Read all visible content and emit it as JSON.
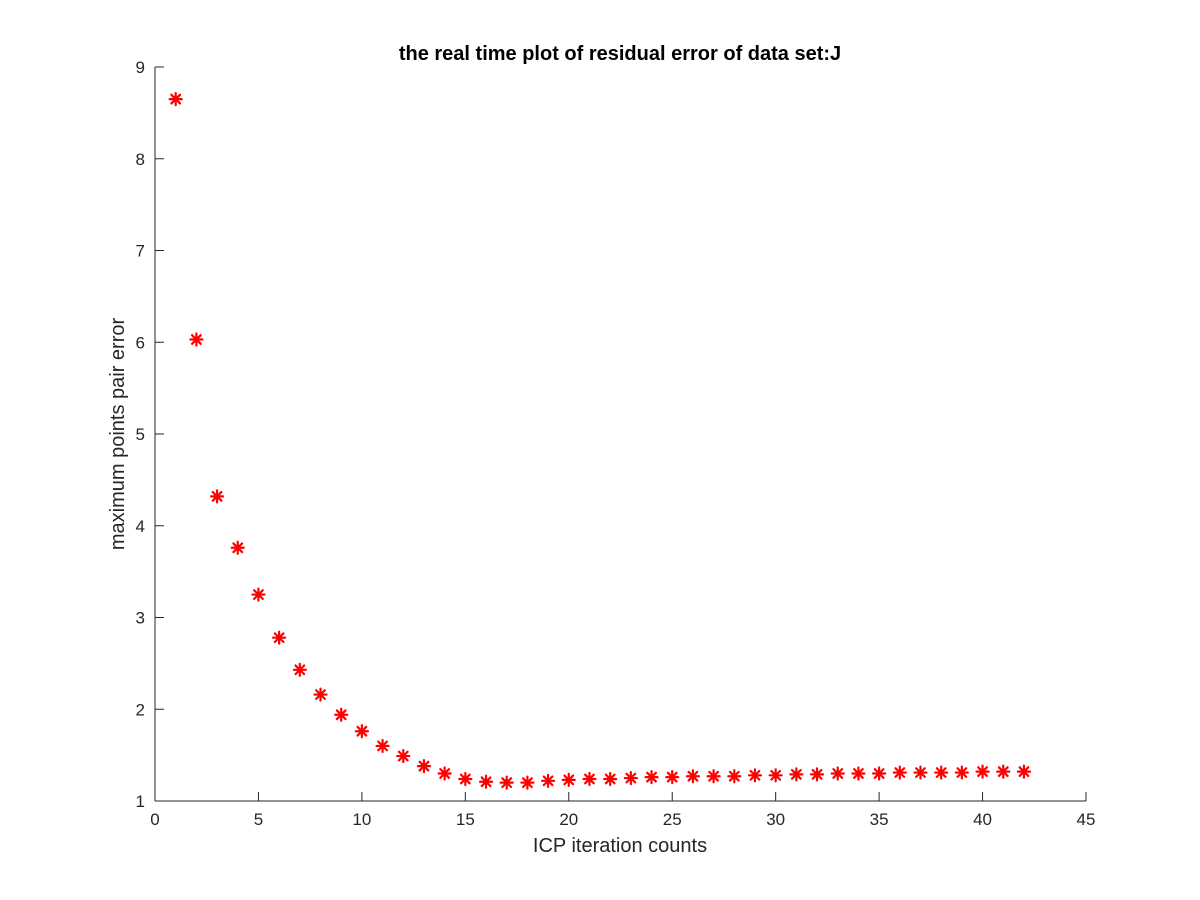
{
  "chart_data": {
    "type": "scatter",
    "title": "the real time plot of residual error of data set:J",
    "xlabel": "ICP iteration counts",
    "ylabel": "maximum points pair error",
    "xlim": [
      0,
      45
    ],
    "ylim": [
      1,
      9
    ],
    "xticks": [
      0,
      5,
      10,
      15,
      20,
      25,
      30,
      35,
      40,
      45
    ],
    "yticks": [
      1,
      2,
      3,
      4,
      5,
      6,
      7,
      8,
      9
    ],
    "grid": false,
    "marker": "asterisk",
    "marker_color": "#ff0000",
    "series": [
      {
        "x": [
          1,
          2,
          3,
          4,
          5,
          6,
          7,
          8,
          9,
          10,
          11,
          12,
          13,
          14,
          15,
          16,
          17,
          18,
          19,
          20,
          21,
          22,
          23,
          24,
          25,
          26,
          27,
          28,
          29,
          30,
          31,
          32,
          33,
          34,
          35,
          36,
          37,
          38,
          39,
          40,
          41,
          42
        ],
        "values": [
          8.65,
          6.03,
          4.32,
          3.76,
          3.25,
          2.78,
          2.43,
          2.16,
          1.94,
          1.76,
          1.6,
          1.49,
          1.38,
          1.3,
          1.24,
          1.21,
          1.2,
          1.2,
          1.22,
          1.23,
          1.24,
          1.24,
          1.25,
          1.26,
          1.26,
          1.27,
          1.27,
          1.27,
          1.28,
          1.28,
          1.29,
          1.29,
          1.3,
          1.3,
          1.3,
          1.31,
          1.31,
          1.31,
          1.31,
          1.32,
          1.32,
          1.32
        ]
      }
    ]
  }
}
